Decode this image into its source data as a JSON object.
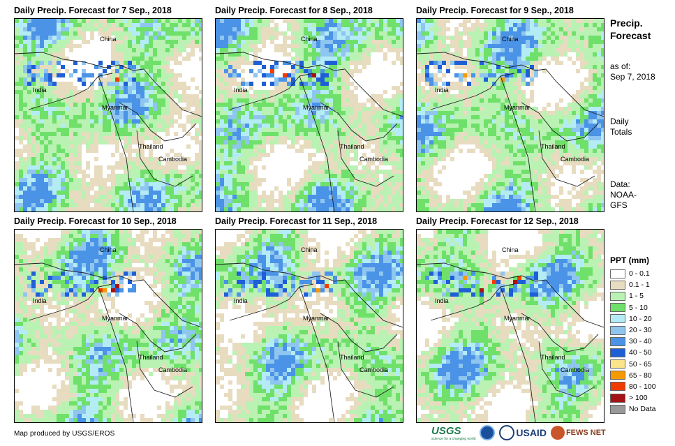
{
  "panels": [
    {
      "title": "Daily Precip. Forecast for 7 Sep., 2018"
    },
    {
      "title": "Daily Precip. Forecast for 8 Sep., 2018"
    },
    {
      "title": "Daily Precip. Forecast for 9 Sep., 2018"
    },
    {
      "title": "Daily Precip. Forecast for 10 Sep., 2018"
    },
    {
      "title": "Daily Precip. Forecast for 11 Sep., 2018"
    },
    {
      "title": "Daily Precip. Forecast for 12 Sep., 2018"
    }
  ],
  "map_labels": {
    "china": "China",
    "india": "India",
    "myanmar": "Myanmar",
    "thailand": "Thailand",
    "cambodia": "Cambodia"
  },
  "side": {
    "title_line1": "Precip.",
    "title_line2": "Forecast",
    "asof_line1": "as of:",
    "asof_line2": "Sep 7, 2018",
    "totals_line1": "Daily",
    "totals_line2": "Totals",
    "data_line1": "Data:",
    "data_line2": "NOAA-",
    "data_line3": "GFS"
  },
  "legend": {
    "title": "PPT (mm)",
    "items": [
      {
        "label": "0 - 0.1",
        "color": "#ffffff"
      },
      {
        "label": "0.1 - 1",
        "color": "#e8dcc0"
      },
      {
        "label": "1 - 5",
        "color": "#b9f2b3"
      },
      {
        "label": "5 - 10",
        "color": "#6fe06a"
      },
      {
        "label": "10 - 20",
        "color": "#b4ecf5"
      },
      {
        "label": "20 - 30",
        "color": "#8fc6f0"
      },
      {
        "label": "30 - 40",
        "color": "#4a93e6"
      },
      {
        "label": "40 - 50",
        "color": "#1f5fd6"
      },
      {
        "label": "50 - 65",
        "color": "#fbe48a"
      },
      {
        "label": "65 - 80",
        "color": "#f59a00"
      },
      {
        "label": "80 - 100",
        "color": "#f03c00"
      },
      {
        "label": "> 100",
        "color": "#a41414"
      },
      {
        "label": "No Data",
        "color": "#999999"
      }
    ]
  },
  "footer": {
    "credit": "Map produced by USGS/EROS",
    "logo_usgs": "USGS",
    "logo_usgs_tagline": "science for a changing world",
    "logo_usaid": "USAID",
    "logo_fewsnet": "FEWS NET"
  }
}
